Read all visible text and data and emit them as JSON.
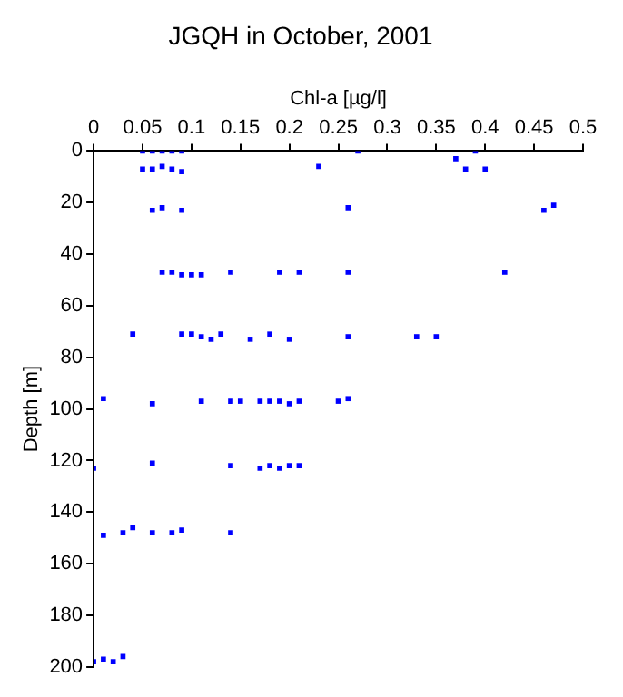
{
  "chart_data": {
    "type": "scatter",
    "title": "JGQH in October, 2001",
    "xlabel": "Chl-a [µg/l]",
    "ylabel": "Depth [m]",
    "xlim": [
      0,
      0.5
    ],
    "xticks": [
      0,
      0.05,
      0.1,
      0.15,
      0.2,
      0.25,
      0.3,
      0.35,
      0.4,
      0.45,
      0.5
    ],
    "ylim": [
      200,
      0
    ],
    "yticks": [
      0,
      20,
      40,
      60,
      80,
      100,
      120,
      140,
      160,
      180,
      200
    ],
    "grid": false,
    "legend": false,
    "marker": "square",
    "series": [
      {
        "color": "#0000ff",
        "x": [
          0.05,
          0.06,
          0.07,
          0.08,
          0.09,
          0.27,
          0.39,
          0.37,
          0.05,
          0.06,
          0.07,
          0.08,
          0.09,
          0.23,
          0.38,
          0.4,
          0.06,
          0.07,
          0.09,
          0.26,
          0.46,
          0.47,
          0.07,
          0.08,
          0.09,
          0.1,
          0.11,
          0.14,
          0.19,
          0.21,
          0.26,
          0.42,
          0.04,
          0.09,
          0.1,
          0.11,
          0.12,
          0.13,
          0.16,
          0.18,
          0.2,
          0.26,
          0.33,
          0.35,
          0.01,
          0.06,
          0.11,
          0.14,
          0.15,
          0.17,
          0.18,
          0.19,
          0.2,
          0.21,
          0.25,
          0.26,
          0,
          0.06,
          0.14,
          0.17,
          0.18,
          0.19,
          0.2,
          0.21,
          0.01,
          0.03,
          0.04,
          0.06,
          0.08,
          0.09,
          0.14,
          0,
          0.01,
          0.02,
          0.03
        ],
        "values": [
          0,
          0,
          0,
          0,
          0,
          0,
          0,
          3,
          7,
          7,
          6,
          7,
          8,
          6,
          7,
          7,
          23,
          22,
          23,
          22,
          23,
          21,
          47,
          47,
          48,
          48,
          48,
          47,
          47,
          47,
          47,
          47,
          71,
          71,
          71,
          72,
          73,
          71,
          73,
          71,
          73,
          72,
          72,
          72,
          96,
          98,
          97,
          97,
          97,
          97,
          97,
          97,
          98,
          97,
          97,
          96,
          123,
          121,
          122,
          123,
          122,
          123,
          122,
          122,
          149,
          148,
          146,
          148,
          148,
          147,
          148,
          198,
          197,
          198,
          196
        ]
      }
    ]
  }
}
